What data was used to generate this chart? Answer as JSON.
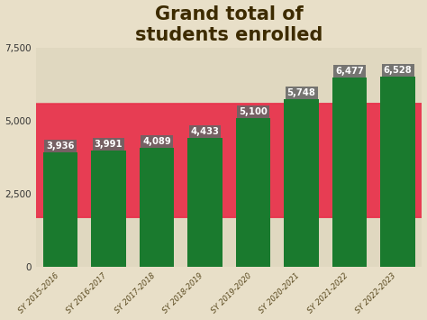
{
  "categories": [
    "SY 2015-2016",
    "SY 2016-2017",
    "SY 2017-2018",
    "SY 2018-2019",
    "SY 2019-2020",
    "SY 2020-2021",
    "SY 2021-2022",
    "SY 2022-2023"
  ],
  "values": [
    3936,
    3991,
    4089,
    4433,
    5100,
    5748,
    6477,
    6528
  ],
  "bar_color": "#1a7a2e",
  "label_bg_color": "#666666",
  "label_text_color": "#ffffff",
  "title_line1": "Grand total of",
  "title_line2": "students enrolled",
  "title_color": "#3d2b00",
  "title_fontsize": 15,
  "ylim": [
    0,
    7500
  ],
  "yticks": [
    0,
    2500,
    5000,
    7500
  ],
  "bg_color_top": "#b8d8e8",
  "bg_color_bottom": "#e8dfc8",
  "arrow_color": "#e8304a",
  "label_fontsize": 7.2,
  "tick_label_color": "#5a4a20"
}
